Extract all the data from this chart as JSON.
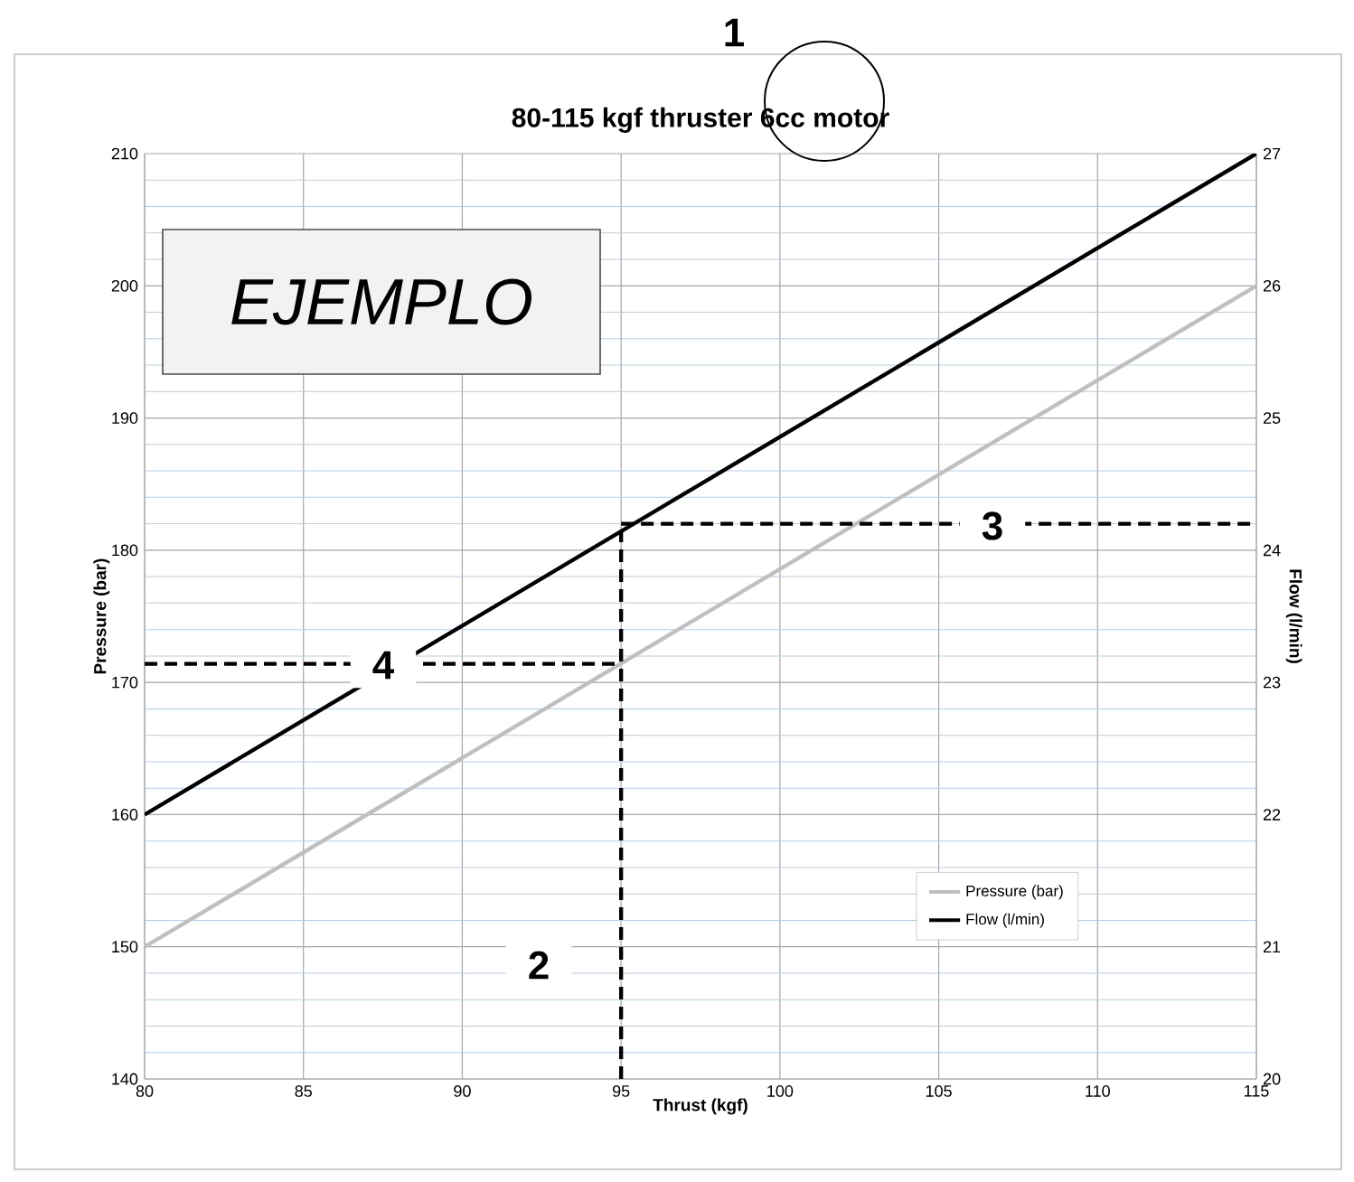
{
  "chart_data": {
    "type": "line",
    "title": "80-115 kgf thruster 6cc motor",
    "xlabel": "Thrust (kgf)",
    "ylabel": "Pressure (bar)",
    "y2label": "Flow (l/min)",
    "xlim": [
      80,
      115
    ],
    "xticks": [
      80,
      85,
      90,
      95,
      100,
      105,
      110,
      115
    ],
    "ylim": [
      140,
      210
    ],
    "yticks": [
      140,
      {
        "value": 142,
        "label": null
      },
      {
        "value": 144,
        "label": null
      },
      {
        "value": 146,
        "label": null
      },
      {
        "value": 148,
        "label": null
      },
      150,
      {
        "value": 152,
        "label": null
      },
      {
        "value": 154,
        "label": null
      },
      {
        "value": 156,
        "label": null
      },
      {
        "value": 158,
        "label": null
      },
      160,
      {
        "value": 162,
        "label": null
      },
      {
        "value": 164,
        "label": null
      },
      {
        "value": 166,
        "label": null
      },
      {
        "value": 168,
        "label": null
      },
      170,
      {
        "value": 172,
        "label": null
      },
      {
        "value": 174,
        "label": null
      },
      {
        "value": 176,
        "label": null
      },
      {
        "value": 178,
        "label": null
      },
      180,
      {
        "value": 182,
        "label": null
      },
      {
        "value": 184,
        "label": null
      },
      {
        "value": 186,
        "label": null
      },
      {
        "value": 188,
        "label": null
      },
      190,
      {
        "value": 192,
        "label": null
      },
      {
        "value": 194,
        "label": null
      },
      {
        "value": 196,
        "label": null
      },
      {
        "value": 198,
        "label": null
      },
      200,
      {
        "value": 202,
        "label": null
      },
      {
        "value": 204,
        "label": null
      },
      {
        "value": 206,
        "label": null
      },
      {
        "value": 208,
        "label": null
      },
      210
    ],
    "y2lim": [
      20,
      27
    ],
    "y2ticks": [
      20,
      21,
      22,
      23,
      24,
      25,
      26,
      27
    ],
    "grid": true,
    "legend": "bottom right",
    "series": [
      {
        "name": "Pressure (bar)",
        "color": "#bfbfbf",
        "x": [
          80,
          115
        ],
        "values": [
          150,
          200
        ]
      },
      {
        "name": "Flow (l/min)",
        "color": "#000000",
        "axis": "y2",
        "x": [
          80,
          115
        ],
        "values": [
          22,
          27
        ]
      },
      {
        "type": "line",
        "color": "#000000",
        "line_style": "dashed",
        "x": [
          95,
          95
        ],
        "values": [
          140,
          181.4
        ]
      },
      {
        "type": "line",
        "color": "#000000",
        "line_style": "dashed",
        "axis": "y2",
        "x": [
          95,
          115
        ],
        "values": [
          24.2,
          24.2
        ]
      },
      {
        "type": "line",
        "color": "#000000",
        "line_style": "dashed",
        "x": [
          80,
          95
        ],
        "values": [
          171.4,
          171.4
        ]
      }
    ],
    "annotations": [
      "1",
      "2",
      "3",
      "4",
      "EJEMPLO"
    ]
  }
}
